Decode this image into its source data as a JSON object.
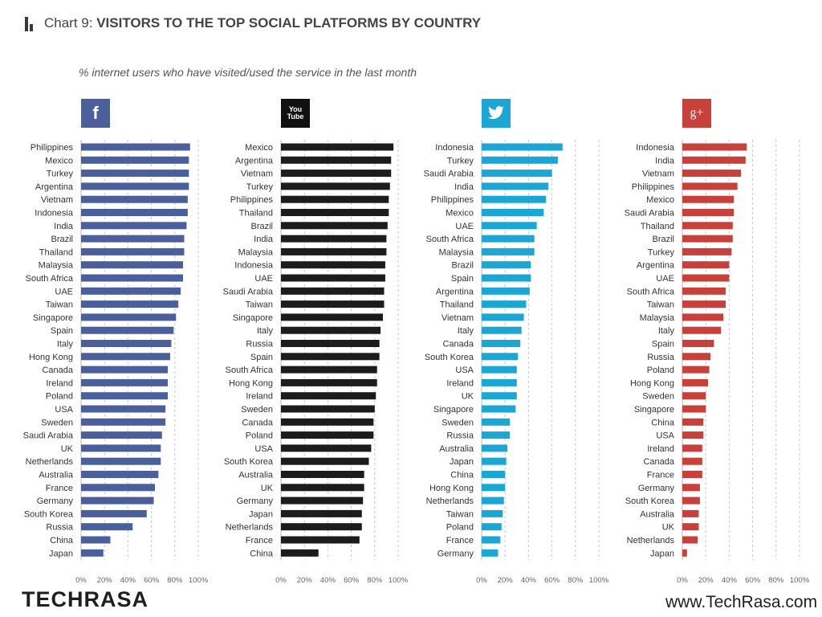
{
  "header": {
    "chart_label": "Chart 9:",
    "title": "VISITORS TO THE TOP SOCIAL PLATFORMS BY COUNTRY",
    "subtitle": "% internet users who have visited/used the service in the last month"
  },
  "footer": {
    "logo_text": "TECHRASA",
    "url": "www.TechRasa.com"
  },
  "chart_data": [
    {
      "type": "bar",
      "orientation": "horizontal",
      "platform_icon": "facebook-icon",
      "icon_text": "f",
      "color": "#4a5f9c",
      "icon_bg": "#4a5f9c",
      "categories": [
        "Philippines",
        "Mexico",
        "Turkey",
        "Argentina",
        "Vietnam",
        "Indonesia",
        "India",
        "Brazil",
        "Thailand",
        "Malaysia",
        "South Africa",
        "UAE",
        "Taiwan",
        "Singapore",
        "Spain",
        "Italy",
        "Hong Kong",
        "Canada",
        "Ireland",
        "Poland",
        "USA",
        "Sweden",
        "Saudi Arabia",
        "UK",
        "Netherlands",
        "Australia",
        "France",
        "Germany",
        "South Korea",
        "Russia",
        "China",
        "Japan"
      ],
      "values": [
        93,
        92,
        92,
        92,
        91,
        91,
        90,
        88,
        88,
        87,
        87,
        85,
        83,
        81,
        79,
        77,
        76,
        74,
        74,
        74,
        72,
        72,
        69,
        68,
        68,
        66,
        63,
        62,
        56,
        44,
        25,
        19
      ],
      "xlim": [
        0,
        100
      ],
      "xticks": [
        "0%",
        "20%",
        "40%",
        "60%",
        "80%",
        "100%"
      ],
      "grid": true
    },
    {
      "type": "bar",
      "orientation": "horizontal",
      "platform_icon": "youtube-icon",
      "icon_text": "You Tube",
      "color": "#1c1c1c",
      "icon_bg": "#111111",
      "categories": [
        "Mexico",
        "Argentina",
        "Vietnam",
        "Turkey",
        "Philippines",
        "Thailand",
        "Brazil",
        "India",
        "Malaysia",
        "Indonesia",
        "UAE",
        "Saudi Arabia",
        "Taiwan",
        "Singapore",
        "Italy",
        "Russia",
        "Spain",
        "South Africa",
        "Hong Kong",
        "Ireland",
        "Sweden",
        "Canada",
        "Poland",
        "USA",
        "South Korea",
        "Australia",
        "UK",
        "Germany",
        "Japan",
        "Netherlands",
        "France",
        "China"
      ],
      "values": [
        96,
        94,
        94,
        93,
        92,
        92,
        91,
        90,
        90,
        89,
        89,
        88,
        88,
        87,
        85,
        84,
        84,
        82,
        82,
        81,
        80,
        79,
        79,
        77,
        75,
        71,
        71,
        70,
        69,
        69,
        67,
        32
      ],
      "xlim": [
        0,
        100
      ],
      "xticks": [
        "0%",
        "20%",
        "40%",
        "60%",
        "80%",
        "100%"
      ],
      "grid": true
    },
    {
      "type": "bar",
      "orientation": "horizontal",
      "platform_icon": "twitter-icon",
      "color": "#1ca6d3",
      "icon_bg": "#1ca6d3",
      "categories": [
        "Indonesia",
        "Turkey",
        "Saudi Arabia",
        "India",
        "Philippines",
        "Mexico",
        "UAE",
        "South Africa",
        "Malaysia",
        "Brazil",
        "Spain",
        "Argentina",
        "Thailand",
        "Vietnam",
        "Italy",
        "Canada",
        "South Korea",
        "USA",
        "Ireland",
        "UK",
        "Singapore",
        "Sweden",
        "Russia",
        "Australia",
        "Japan",
        "China",
        "Hong Kong",
        "Netherlands",
        "Taiwan",
        "Poland",
        "France",
        "Germany"
      ],
      "values": [
        69,
        65,
        60,
        57,
        55,
        53,
        47,
        45,
        45,
        42,
        42,
        41,
        38,
        36,
        34,
        33,
        31,
        30,
        30,
        30,
        29,
        24,
        24,
        22,
        21,
        20,
        20,
        19,
        18,
        17,
        16,
        14
      ],
      "xlim": [
        0,
        100
      ],
      "xticks": [
        "0%",
        "20%",
        "40%",
        "60%",
        "80%",
        "100%"
      ],
      "grid": true
    },
    {
      "type": "bar",
      "orientation": "horizontal",
      "platform_icon": "google-plus-icon",
      "icon_text": "g+",
      "color": "#c8403a",
      "icon_bg": "#c8403a",
      "categories": [
        "Indonesia",
        "India",
        "Vietnam",
        "Philippines",
        "Mexico",
        "Saudi Arabia",
        "Thailand",
        "Brazil",
        "Turkey",
        "Argentina",
        "UAE",
        "South Africa",
        "Taiwan",
        "Malaysia",
        "Italy",
        "Spain",
        "Russia",
        "Poland",
        "Hong Kong",
        "Sweden",
        "Singapore",
        "China",
        "USA",
        "Ireland",
        "Canada",
        "France",
        "Germany",
        "South Korea",
        "Australia",
        "UK",
        "Netherlands",
        "Japan"
      ],
      "values": [
        55,
        54,
        50,
        47,
        44,
        44,
        43,
        43,
        42,
        40,
        40,
        37,
        37,
        35,
        33,
        27,
        24,
        23,
        22,
        20,
        20,
        18,
        18,
        17,
        17,
        17,
        15,
        15,
        14,
        14,
        13,
        4
      ],
      "xlim": [
        0,
        100
      ],
      "xticks": [
        "0%",
        "20%",
        "40%",
        "60%",
        "80%",
        "100%"
      ],
      "grid": true
    }
  ]
}
